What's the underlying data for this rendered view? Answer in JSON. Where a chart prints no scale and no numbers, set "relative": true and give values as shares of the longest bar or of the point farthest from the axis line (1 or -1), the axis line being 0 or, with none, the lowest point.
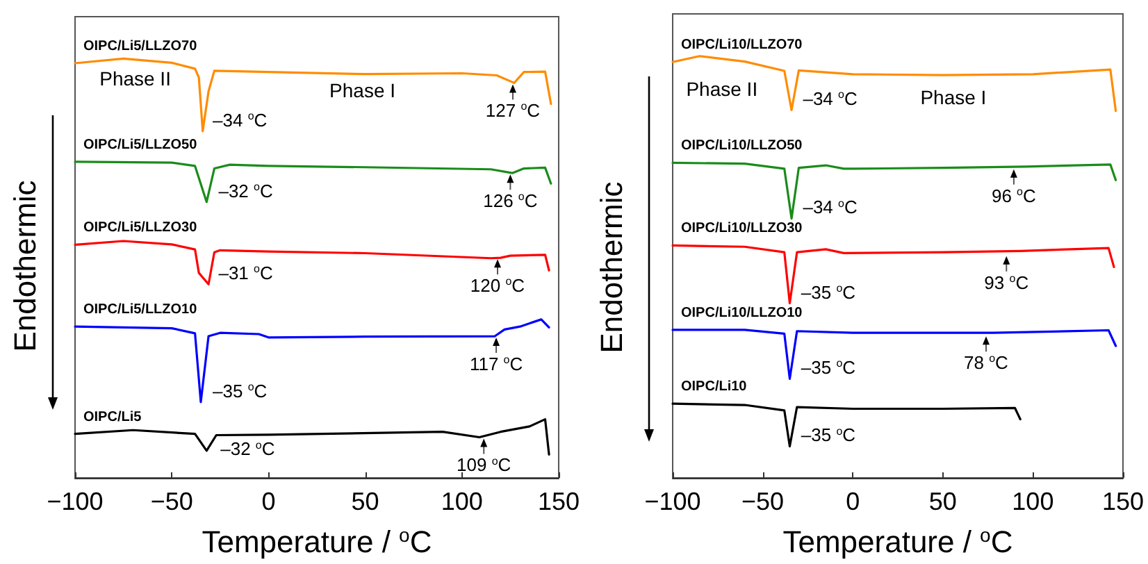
{
  "chart_data": [
    {
      "type": "line",
      "relative": true,
      "xlabel": "Temperature / $^{o}$C",
      "ylabel": "Endothermic",
      "xlim": [
        -100,
        150
      ],
      "xticks": [
        -100,
        -50,
        0,
        50,
        100,
        150
      ],
      "grid": false,
      "marker": "none",
      "line_style": "solid",
      "series": [
        {
          "name": "OIPC/Li5/LLZO70",
          "color": "#ff8c00",
          "x": [
            -100,
            -75,
            -50,
            -38,
            -36,
            -34,
            -31,
            -28,
            0,
            50,
            100,
            118,
            127,
            132,
            143,
            146
          ],
          "values": [
            0.989,
            1.0,
            0.99,
            0.976,
            0.955,
            0.827,
            0.922,
            0.971,
            0.968,
            0.963,
            0.965,
            0.96,
            0.942,
            0.968,
            0.969,
            0.892
          ]
        },
        {
          "name": "OIPC/Li5/LLZO50",
          "color": "#1a8c1a",
          "x": [
            -100,
            -50,
            -38,
            -32,
            -28,
            -20,
            0,
            50,
            115,
            126,
            132,
            143,
            146
          ],
          "values": [
            0.754,
            0.752,
            0.744,
            0.658,
            0.738,
            0.747,
            0.744,
            0.741,
            0.736,
            0.727,
            0.738,
            0.74,
            0.702
          ]
        },
        {
          "name": "OIPC/Li5/LLZO30",
          "color": "#ff0000",
          "x": [
            -100,
            -75,
            -50,
            -38,
            -36,
            -31,
            -28,
            -25,
            0,
            50,
            115,
            120,
            125,
            143,
            145
          ],
          "values": [
            0.556,
            0.565,
            0.557,
            0.545,
            0.489,
            0.462,
            0.538,
            0.543,
            0.54,
            0.536,
            0.524,
            0.525,
            0.53,
            0.532,
            0.495
          ]
        },
        {
          "name": "OIPC/Li5/LLZO10",
          "color": "#0000ff",
          "x": [
            -100,
            -50,
            -38,
            -35,
            -31,
            -25,
            -5,
            0,
            50,
            117,
            122,
            130,
            141,
            145
          ],
          "values": [
            0.361,
            0.357,
            0.345,
            0.181,
            0.338,
            0.346,
            0.343,
            0.335,
            0.337,
            0.338,
            0.354,
            0.361,
            0.378,
            0.359
          ]
        },
        {
          "name": "OIPC/Li5",
          "color": "#000000",
          "x": [
            -100,
            -70,
            -38,
            -32,
            -27,
            0,
            90,
            109,
            120,
            135,
            143,
            145
          ],
          "values": [
            0.105,
            0.114,
            0.105,
            0.065,
            0.102,
            0.103,
            0.11,
            0.097,
            0.11,
            0.123,
            0.14,
            0.056
          ]
        }
      ],
      "annotations": [
        "Phase II",
        "Phase I",
        {
          "text": "–34 $^{o}$C",
          "x": -34,
          "y": 0.827
        },
        {
          "text": "–32 $^{o}$C",
          "x": -32,
          "y": 0.658
        },
        {
          "text": "–31 $^{o}$C",
          "x": -31,
          "y": 0.462
        },
        {
          "text": "–35 $^{o}$C",
          "x": -35,
          "y": 0.181
        },
        {
          "text": "–32 $^{o}$C",
          "x": -32,
          "y": 0.065
        },
        {
          "text": "127 $^{o}$C",
          "x": 126.3,
          "y": 0.942
        },
        {
          "text": "126 $^{o}$C",
          "x": 125,
          "y": 0.727
        },
        {
          "text": "120 $^{o}$C",
          "x": 118.4,
          "y": 0.525
        },
        {
          "text": "117 $^{o}$C",
          "x": 117.7,
          "y": 0.338
        },
        {
          "text": "109 $^{o}$C",
          "x": 111.3,
          "y": 0.097
        }
      ]
    },
    {
      "type": "line",
      "relative": true,
      "xlabel": "Temperature / $^{o}$C",
      "ylabel": "Endothermic",
      "xlim": [
        -100,
        150
      ],
      "xticks": [
        -100,
        -50,
        0,
        50,
        100,
        150
      ],
      "grid": false,
      "marker": "none",
      "line_style": "solid",
      "series": [
        {
          "name": "OIPC/Li10/LLZO70",
          "color": "#ff8c00",
          "x": [
            -100,
            -85,
            -60,
            -38,
            -34,
            -30,
            0,
            50,
            100,
            143,
            146
          ],
          "values": [
            0.986,
            1.0,
            0.987,
            0.965,
            0.872,
            0.966,
            0.957,
            0.955,
            0.957,
            0.968,
            0.87
          ]
        },
        {
          "name": "OIPC/Li10/LLZO50",
          "color": "#1a8c1a",
          "x": [
            -100,
            -60,
            -38,
            -34,
            -30,
            -15,
            -5,
            0,
            50,
            96,
            143,
            146
          ],
          "values": [
            0.747,
            0.745,
            0.733,
            0.615,
            0.735,
            0.741,
            0.733,
            0.733,
            0.735,
            0.738,
            0.743,
            0.706
          ]
        },
        {
          "name": "OIPC/Li10/LLZO30",
          "color": "#ff0000",
          "x": [
            -100,
            -60,
            -38,
            -35,
            -31,
            -15,
            -5,
            50,
            93,
            142,
            145
          ],
          "values": [
            0.551,
            0.548,
            0.535,
            0.414,
            0.535,
            0.542,
            0.533,
            0.535,
            0.538,
            0.545,
            0.5
          ]
        },
        {
          "name": "OIPC/Li10/LLZO10",
          "color": "#0000ff",
          "x": [
            -100,
            -60,
            -38,
            -35,
            -31,
            0,
            78,
            142,
            146
          ],
          "values": [
            0.351,
            0.351,
            0.342,
            0.235,
            0.348,
            0.344,
            0.344,
            0.35,
            0.313
          ]
        },
        {
          "name": "OIPC/Li10",
          "color": "#000000",
          "x": [
            -100,
            -60,
            -38,
            -35,
            -31,
            0,
            50,
            90,
            93
          ],
          "values": [
            0.176,
            0.173,
            0.16,
            0.075,
            0.168,
            0.164,
            0.164,
            0.166,
            0.139
          ]
        }
      ],
      "annotations": [
        "Phase II",
        "Phase I",
        {
          "text": "–34 $^{o}$C",
          "x": -34,
          "y": 0.872
        },
        {
          "text": "–34 $^{o}$C",
          "x": -34,
          "y": 0.615
        },
        {
          "text": "–35 $^{o}$C",
          "x": -35,
          "y": 0.414
        },
        {
          "text": "–35 $^{o}$C",
          "x": -35,
          "y": 0.235
        },
        {
          "text": "–35 $^{o}$C",
          "x": -35,
          "y": 0.075
        },
        {
          "text": "96 $^{o}$C",
          "x": 89.4,
          "y": 0.735
        },
        {
          "text": "93 $^{o}$C",
          "x": 85.3,
          "y": 0.529
        },
        {
          "text": "78 $^{o}$C",
          "x": 74,
          "y": 0.339
        }
      ]
    }
  ]
}
